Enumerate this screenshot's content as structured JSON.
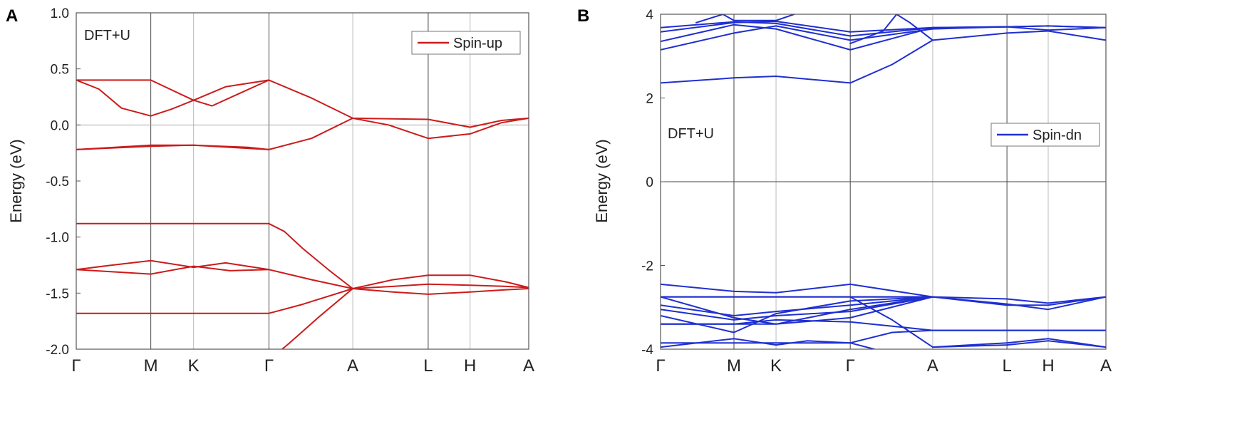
{
  "chart_data": [
    {
      "panel": "A",
      "type": "line",
      "ylabel": "Energy (eV)",
      "ylim": [
        -2.0,
        1.0
      ],
      "yticks": [
        "1.0",
        "0.5",
        "0.0",
        "-0.5",
        "-1.0",
        "-1.5",
        "-2.0"
      ],
      "ytick_values": [
        1.0,
        0.5,
        0.0,
        -0.5,
        -1.0,
        -1.5,
        -2.0
      ],
      "kpoints": [
        "Γ",
        "M",
        "K",
        "Γ",
        "A",
        "L",
        "H",
        "A"
      ],
      "kpos": [
        0,
        0.1648,
        0.2593,
        0.4259,
        0.6111,
        0.7778,
        0.8704,
        1.0
      ],
      "kline_style": [
        "none",
        "dark",
        "light",
        "dark",
        "light",
        "dark",
        "light",
        "none"
      ],
      "annotation": "DFT+U",
      "legend": "Spin-up",
      "color": "#cc1b1b",
      "bands": [
        {
          "x": [
            0,
            0.1648,
            0.2593,
            0.33,
            0.4259,
            0.52,
            0.6111,
            0.7778,
            0.8704,
            0.94,
            1.0
          ],
          "y": [
            0.4,
            0.4,
            0.22,
            0.34,
            0.4,
            0.24,
            0.06,
            0.05,
            -0.02,
            0.04,
            0.06
          ]
        },
        {
          "x": [
            0,
            0.05,
            0.1,
            0.1648,
            0.21,
            0.2593,
            0.3,
            0.36,
            0.4259
          ],
          "y": [
            0.4,
            0.32,
            0.15,
            0.08,
            0.14,
            0.22,
            0.17,
            0.28,
            0.4
          ]
        },
        {
          "x": [
            0,
            0.1648,
            0.2593,
            0.38,
            0.4259,
            0.52,
            0.6111,
            0.69,
            0.7778,
            0.8704,
            0.94,
            1.0
          ],
          "y": [
            -0.22,
            -0.18,
            -0.18,
            -0.2,
            -0.22,
            -0.12,
            0.06,
            0.0,
            -0.12,
            -0.08,
            0.02,
            0.06
          ]
        },
        {
          "x": [
            0,
            0.1648,
            0.2593,
            0.4259
          ],
          "y": [
            -0.22,
            -0.19,
            -0.18,
            -0.22
          ]
        },
        {
          "x": [
            0,
            0.1648,
            0.2593,
            0.3,
            0.38,
            0.4259
          ],
          "y": [
            -0.88,
            -0.88,
            -0.88,
            -0.88,
            -0.88,
            -0.88
          ]
        },
        {
          "x": [
            0.4259,
            0.46,
            0.5,
            0.56,
            0.6111
          ],
          "y": [
            -0.88,
            -0.95,
            -1.1,
            -1.3,
            -1.46
          ]
        },
        {
          "x": [
            0,
            0.08,
            0.1648,
            0.2593,
            0.33,
            0.4259
          ],
          "y": [
            -1.29,
            -1.25,
            -1.21,
            -1.27,
            -1.23,
            -1.29
          ]
        },
        {
          "x": [
            0,
            0.08,
            0.1648,
            0.2593,
            0.34,
            0.4259
          ],
          "y": [
            -1.29,
            -1.31,
            -1.33,
            -1.26,
            -1.3,
            -1.29
          ]
        },
        {
          "x": [
            0.4259,
            0.52,
            0.6111,
            0.7,
            0.7778,
            0.8704,
            0.95,
            1.0
          ],
          "y": [
            -1.29,
            -1.38,
            -1.46,
            -1.38,
            -1.34,
            -1.34,
            -1.4,
            -1.45
          ]
        },
        {
          "x": [
            0.6111,
            0.7,
            0.7778,
            0.8704,
            0.95,
            1.0
          ],
          "y": [
            -1.46,
            -1.44,
            -1.42,
            -1.43,
            -1.44,
            -1.45
          ]
        },
        {
          "x": [
            0.6111,
            0.7,
            0.7778,
            0.8704,
            0.95,
            1.0
          ],
          "y": [
            -1.46,
            -1.49,
            -1.51,
            -1.49,
            -1.47,
            -1.46
          ]
        },
        {
          "x": [
            0,
            0.1648,
            0.2593,
            0.4259,
            0.5,
            0.6111
          ],
          "y": [
            -1.68,
            -1.68,
            -1.68,
            -1.68,
            -1.6,
            -1.46
          ]
        },
        {
          "x": [
            0.6111,
            0.54,
            0.47,
            0.455
          ],
          "y": [
            -1.46,
            -1.7,
            -1.95,
            -2.0
          ]
        }
      ]
    },
    {
      "panel": "B",
      "type": "line",
      "ylabel": "Energy (eV)",
      "ylim": [
        -4,
        4
      ],
      "yticks": [
        "4",
        "2",
        "0",
        "-2",
        "-4"
      ],
      "ytick_values": [
        4,
        2,
        0,
        -2,
        -4
      ],
      "kpoints": [
        "Γ",
        "M",
        "K",
        "Γ",
        "A",
        "L",
        "H",
        "A"
      ],
      "kpos": [
        0,
        0.1648,
        0.2593,
        0.4259,
        0.6111,
        0.7778,
        0.8704,
        1.0
      ],
      "kline_style": [
        "none",
        "dark",
        "light",
        "dark",
        "light",
        "dark",
        "light",
        "none"
      ],
      "annotation": "DFT+U",
      "legend": "Spin-dn",
      "color": "#1f2fd0",
      "bands": [
        {
          "x": [
            0,
            0.1648,
            0.2593,
            0.4259,
            0.52,
            0.6111,
            0.7778,
            0.8704,
            1.0
          ],
          "y": [
            2.36,
            2.48,
            2.52,
            2.36,
            2.8,
            3.38,
            3.55,
            3.6,
            3.38
          ]
        },
        {
          "x": [
            0,
            0.1648,
            0.2593,
            0.4259,
            0.6111,
            0.7778,
            0.8704,
            1.0
          ],
          "y": [
            3.15,
            3.55,
            3.72,
            3.38,
            3.65,
            3.7,
            3.72,
            3.68
          ]
        },
        {
          "x": [
            0,
            0.1648,
            0.2593,
            0.4259,
            0.6111,
            0.7778,
            0.8704,
            1.0
          ],
          "y": [
            3.35,
            3.75,
            3.65,
            3.15,
            3.68,
            3.7,
            3.62,
            3.68
          ]
        },
        {
          "x": [
            0,
            0.1648,
            0.2593,
            0.4259,
            0.6111,
            0.7778,
            0.8704,
            1.0
          ],
          "y": [
            3.58,
            3.8,
            3.83,
            3.58,
            3.68,
            3.7,
            3.72,
            3.68
          ]
        },
        {
          "x": [
            0,
            0.1648,
            0.2593,
            0.4259,
            0.6111
          ],
          "y": [
            3.68,
            3.82,
            3.78,
            3.48,
            3.68
          ]
        },
        {
          "x": [
            0.08,
            0.14,
            0.1648,
            0.2593,
            0.3
          ],
          "y": [
            3.8,
            4.0,
            3.85,
            3.85,
            4.0
          ]
        },
        {
          "x": [
            0.4259,
            0.5,
            0.53,
            0.56,
            0.6111
          ],
          "y": [
            3.3,
            3.6,
            4.0,
            3.8,
            3.38
          ]
        },
        {
          "x": [
            0,
            0.1648,
            0.2593,
            0.4259,
            0.6111,
            0.7778,
            0.8704,
            1.0
          ],
          "y": [
            -2.45,
            -2.62,
            -2.65,
            -2.45,
            -2.75,
            -2.8,
            -2.9,
            -2.75
          ]
        },
        {
          "x": [
            0,
            0.1648,
            0.2593,
            0.4259,
            0.6111,
            0.7778,
            0.8704,
            1.0
          ],
          "y": [
            -2.75,
            -2.75,
            -2.75,
            -2.75,
            -2.75,
            -2.92,
            -3.05,
            -2.75
          ]
        },
        {
          "x": [
            0,
            0.1648,
            0.2593,
            0.4259,
            0.6111,
            0.7778,
            0.8704,
            1.0
          ],
          "y": [
            -2.75,
            -2.75,
            -2.75,
            -2.75,
            -2.75,
            -2.95,
            -2.95,
            -2.75
          ]
        },
        {
          "x": [
            0,
            0.1648,
            0.2593,
            0.4259,
            0.6111
          ],
          "y": [
            -2.95,
            -3.2,
            -3.1,
            -2.95,
            -2.75
          ]
        },
        {
          "x": [
            0,
            0.1648,
            0.2593,
            0.4259,
            0.6111
          ],
          "y": [
            -3.05,
            -3.3,
            -3.2,
            -3.1,
            -2.75
          ]
        },
        {
          "x": [
            0,
            0.1648,
            0.2593,
            0.4259,
            0.6111
          ],
          "y": [
            -3.2,
            -3.6,
            -3.15,
            -2.85,
            -2.75
          ]
        },
        {
          "x": [
            0,
            0.1648,
            0.2593,
            0.4259,
            0.6111
          ],
          "y": [
            -3.4,
            -3.4,
            -3.4,
            -3.25,
            -2.75
          ]
        },
        {
          "x": [
            0,
            0.1648,
            0.2593,
            0.4259,
            0.6111
          ],
          "y": [
            -2.75,
            -3.25,
            -3.4,
            -3.05,
            -2.75
          ]
        },
        {
          "x": [
            0,
            0.1648,
            0.2593,
            0.4259,
            0.52,
            0.6111,
            0.7778,
            0.8704,
            1.0
          ],
          "y": [
            -3.4,
            -3.4,
            -3.3,
            -3.35,
            -3.45,
            -3.55,
            -3.55,
            -3.55,
            -3.55
          ]
        },
        {
          "x": [
            0,
            0.1648,
            0.2593,
            0.4259,
            0.52,
            0.6111,
            0.7778,
            0.8704,
            1.0
          ],
          "y": [
            -3.85,
            -3.85,
            -3.85,
            -3.85,
            -3.6,
            -3.55,
            -3.55,
            -3.55,
            -3.55
          ]
        },
        {
          "x": [
            0.4259,
            0.52,
            0.6111,
            0.7778,
            0.8704,
            1.0
          ],
          "y": [
            -2.75,
            -3.3,
            -3.95,
            -3.85,
            -3.75,
            -3.95
          ]
        },
        {
          "x": [
            0,
            0.1648,
            0.2593,
            0.33,
            0.4259,
            0.48
          ],
          "y": [
            -3.95,
            -3.75,
            -3.9,
            -3.8,
            -3.85,
            -4.0
          ]
        },
        {
          "x": [
            0.6111,
            0.7778,
            0.8704,
            1.0
          ],
          "y": [
            -3.95,
            -3.9,
            -3.8,
            -3.95
          ]
        }
      ]
    }
  ]
}
